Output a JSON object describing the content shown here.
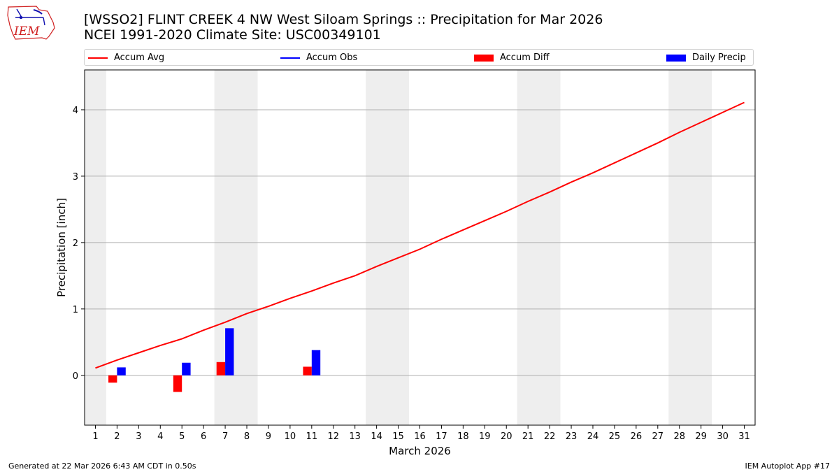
{
  "header": {
    "title_line1": "[WSSO2] FLINT CREEK 4 NW West Siloam Springs :: Precipitation for Mar 2026",
    "title_line2": "NCEI 1991-2020 Climate Site: USC00349101",
    "logo_text": "IEM"
  },
  "legend": [
    {
      "label": "Accum Avg",
      "color": "#ff0000",
      "kind": "line"
    },
    {
      "label": "Accum Obs",
      "color": "#0000ff",
      "kind": "line"
    },
    {
      "label": "Accum Diff",
      "color": "#ff0000",
      "kind": "box"
    },
    {
      "label": "Daily Precip",
      "color": "#0000ff",
      "kind": "box"
    }
  ],
  "footer": {
    "generated": "Generated at 22 Mar 2026 6:43 AM CDT in 0.50s",
    "app": "IEM Autoplot App #17"
  },
  "chart_data": {
    "type": "bar",
    "xlabel": "March 2026",
    "ylabel": "Precipitation [inch]",
    "xlim": [
      0.5,
      31.5
    ],
    "ylim": [
      -0.75,
      4.6
    ],
    "x_ticks": [
      1,
      2,
      3,
      4,
      5,
      6,
      7,
      8,
      9,
      10,
      11,
      12,
      13,
      14,
      15,
      16,
      17,
      18,
      19,
      20,
      21,
      22,
      23,
      24,
      25,
      26,
      27,
      28,
      29,
      30,
      31
    ],
    "y_ticks": [
      0,
      1,
      2,
      3,
      4
    ],
    "grid": "horizontal",
    "weekend_shading": [
      [
        0.5,
        1.5
      ],
      [
        6.5,
        8.5
      ],
      [
        13.5,
        15.5
      ],
      [
        20.5,
        22.5
      ],
      [
        27.5,
        29.5
      ]
    ],
    "weekend_color": "#eeeeee",
    "series": [
      {
        "name": "Accum Avg",
        "kind": "line",
        "color": "#ff0000",
        "x": [
          1,
          2,
          3,
          4,
          5,
          6,
          7,
          8,
          9,
          10,
          11,
          12,
          13,
          14,
          15,
          16,
          17,
          18,
          19,
          20,
          21,
          22,
          23,
          24,
          25,
          26,
          27,
          28,
          29,
          30,
          31
        ],
        "values": [
          0.11,
          0.23,
          0.34,
          0.45,
          0.55,
          0.68,
          0.8,
          0.93,
          1.04,
          1.16,
          1.27,
          1.39,
          1.5,
          1.64,
          1.77,
          1.9,
          2.05,
          2.19,
          2.33,
          2.47,
          2.62,
          2.76,
          2.91,
          3.05,
          3.2,
          3.35,
          3.5,
          3.66,
          3.81,
          3.96,
          4.11
        ]
      },
      {
        "name": "Accum Diff",
        "kind": "bar",
        "color": "#ff0000",
        "offset": -0.2,
        "x": [
          2,
          5,
          7,
          11
        ],
        "values": [
          -0.11,
          -0.25,
          0.2,
          0.13
        ]
      },
      {
        "name": "Daily Precip",
        "kind": "bar",
        "color": "#0000ff",
        "offset": 0.2,
        "x": [
          2,
          5,
          7,
          11
        ],
        "values": [
          0.12,
          0.19,
          0.71,
          0.38
        ]
      }
    ]
  }
}
